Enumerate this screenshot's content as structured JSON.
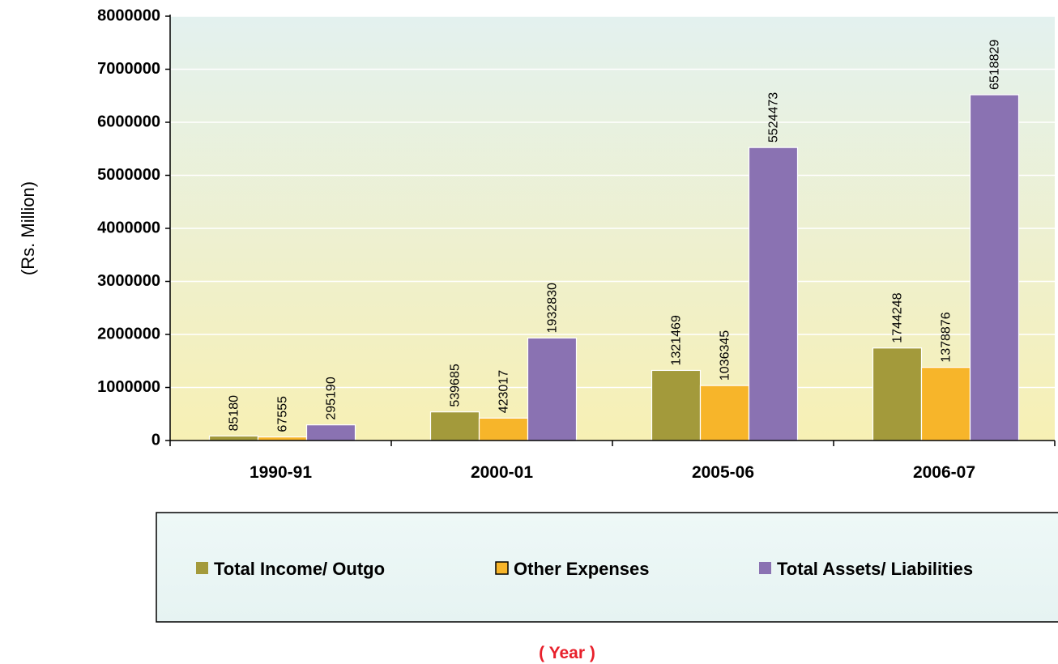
{
  "chart_data": {
    "type": "bar",
    "title": "",
    "xlabel": "( Year )",
    "ylabel": "(Rs. Million)",
    "ylim": [
      0,
      8000000
    ],
    "yticks": [
      0,
      1000000,
      2000000,
      3000000,
      4000000,
      5000000,
      6000000,
      7000000,
      8000000
    ],
    "categories": [
      "1990-91",
      "2000-01",
      "2005-06",
      "2006-07"
    ],
    "legend_position": "bottom",
    "grid": true,
    "series": [
      {
        "name": "Total Income/ Outgo",
        "color": "#a39a3b",
        "values": [
          85180,
          539685,
          1321469,
          1744248
        ]
      },
      {
        "name": "Other Expenses",
        "color": "#f7b52a",
        "values": [
          67555,
          423017,
          1036345,
          1378876
        ]
      },
      {
        "name": "Total Assets/  Liabilities",
        "color": "#8a72b2",
        "values": [
          295190,
          1932830,
          5524473,
          6518829
        ]
      }
    ],
    "colors": {
      "xlabel": "#e8202b",
      "plot_bg_top": "#e3f1ef",
      "plot_bg_bottom": "#f7f0b4",
      "legend_bg": "#e6f3f2"
    }
  }
}
